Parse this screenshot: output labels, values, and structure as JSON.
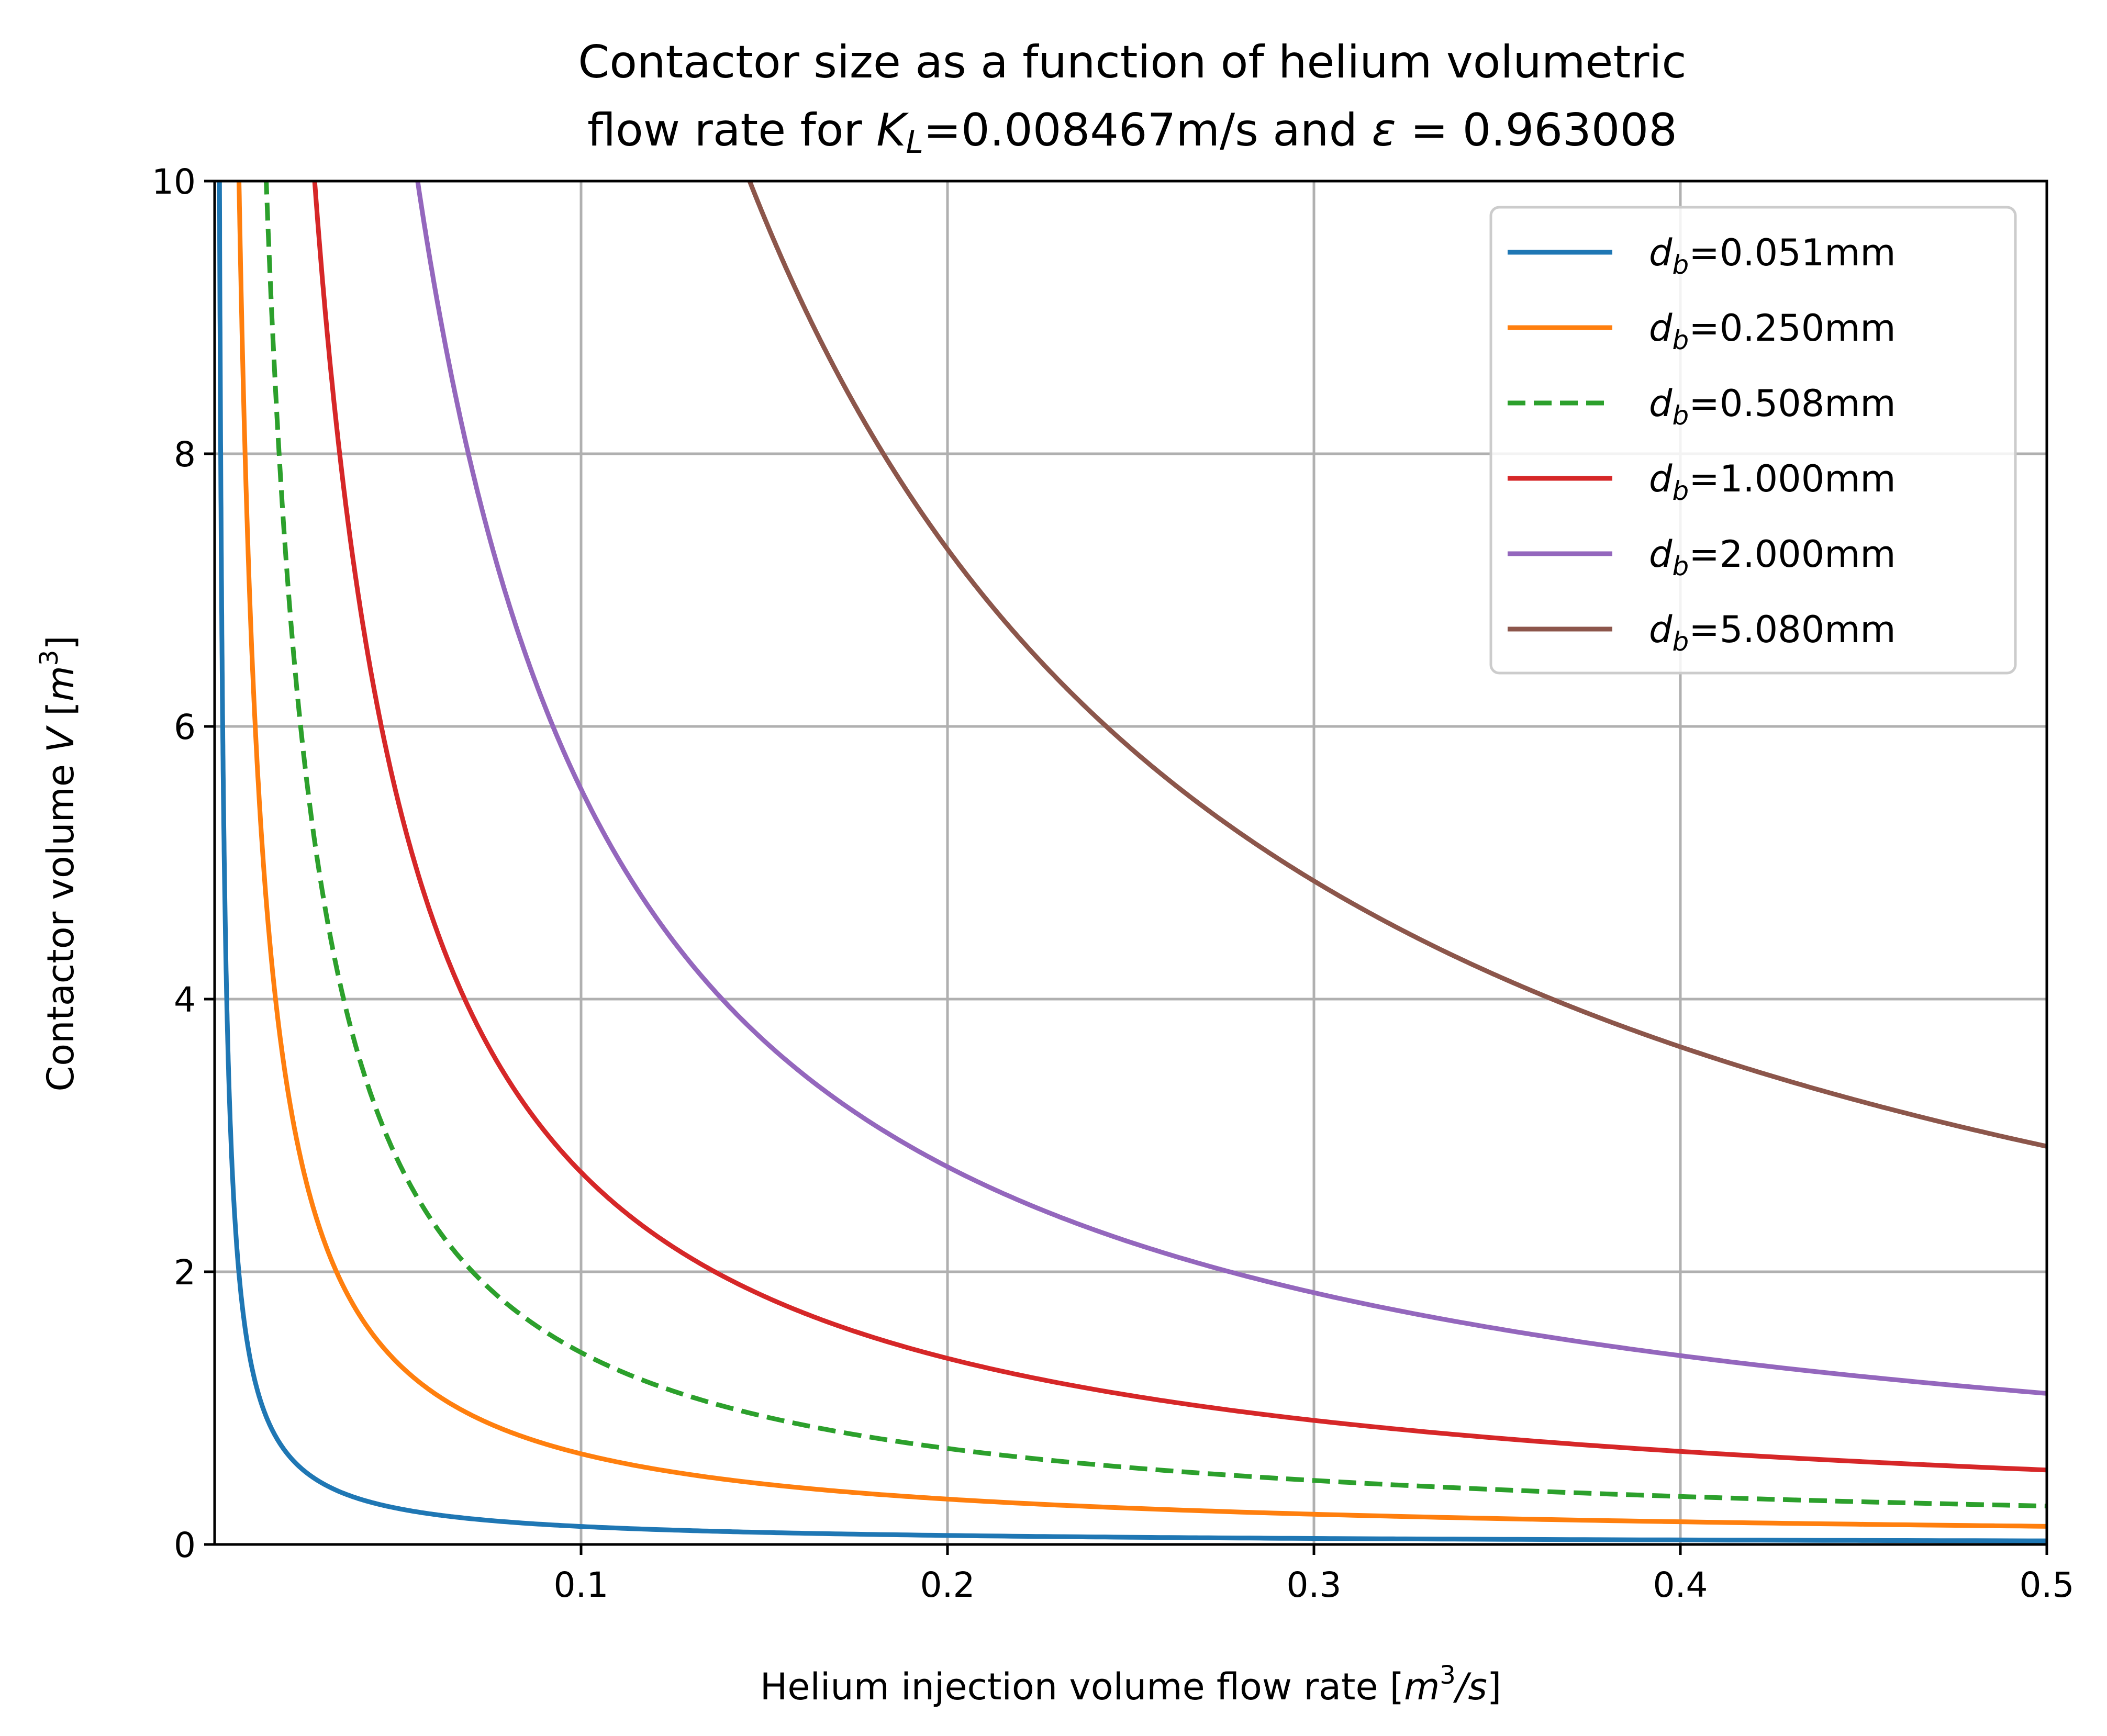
{
  "chart_data": {
    "type": "line",
    "title_line1": "Contactor size as a function of helium volumetric",
    "title_line2_pre": "flow rate for ",
    "title_line2_k": "K",
    "title_line2_k_sub": "L",
    "title_line2_mid": "=0.008467m/s and ",
    "title_line2_eps": "ε",
    "title_line2_post": " = 0.963008",
    "xlabel_pre": "Helium injection volume flow rate [",
    "xlabel_unit_m": "m",
    "xlabel_unit_exp": "3",
    "xlabel_unit_rest": "/s",
    "xlabel_post": "]",
    "ylabel_pre": "Contactor volume ",
    "ylabel_var": "V",
    "ylabel_mid": " [",
    "ylabel_unit_m": "m",
    "ylabel_unit_exp": "3",
    "ylabel_post": "]",
    "xlim": [
      0.0,
      0.5
    ],
    "ylim": [
      0,
      10
    ],
    "xticks": [
      {
        "value": 0.1,
        "label": "0.1"
      },
      {
        "value": 0.2,
        "label": "0.2"
      },
      {
        "value": 0.3,
        "label": "0.3"
      },
      {
        "value": 0.4,
        "label": "0.4"
      },
      {
        "value": 0.5,
        "label": "0.5"
      }
    ],
    "yticks": [
      {
        "value": 0,
        "label": "0"
      },
      {
        "value": 2,
        "label": "2"
      },
      {
        "value": 4,
        "label": "4"
      },
      {
        "value": 6,
        "label": "6"
      },
      {
        "value": 8,
        "label": "8"
      },
      {
        "value": 10,
        "label": "10"
      }
    ],
    "grid": true,
    "legend_position": "top-right",
    "series": [
      {
        "name_var": "d",
        "name_sub": "b",
        "name_rest": "=0.051mm",
        "color": "#1f77b4",
        "dashed": false,
        "formula": "V = C / Q",
        "C": 0.0132
      },
      {
        "name_var": "d",
        "name_sub": "b",
        "name_rest": "=0.250mm",
        "color": "#ff7f0e",
        "dashed": false,
        "formula": "V = C / Q",
        "C": 0.0665
      },
      {
        "name_var": "d",
        "name_sub": "b",
        "name_rest": "=0.508mm",
        "color": "#2ca02c",
        "dashed": true,
        "formula": "V = C / Q",
        "C": 0.1408
      },
      {
        "name_var": "d",
        "name_sub": "b",
        "name_rest": "=1.000mm",
        "color": "#d62728",
        "dashed": false,
        "formula": "V = C / Q",
        "C": 0.273
      },
      {
        "name_var": "d",
        "name_sub": "b",
        "name_rest": "=2.000mm",
        "color": "#9467bd",
        "dashed": false,
        "formula": "V = C / Q",
        "C": 0.554
      },
      {
        "name_var": "d",
        "name_sub": "b",
        "name_rest": "=5.080mm",
        "color": "#8c564b",
        "dashed": false,
        "formula": "V = C / Q",
        "C": 1.46
      }
    ]
  }
}
